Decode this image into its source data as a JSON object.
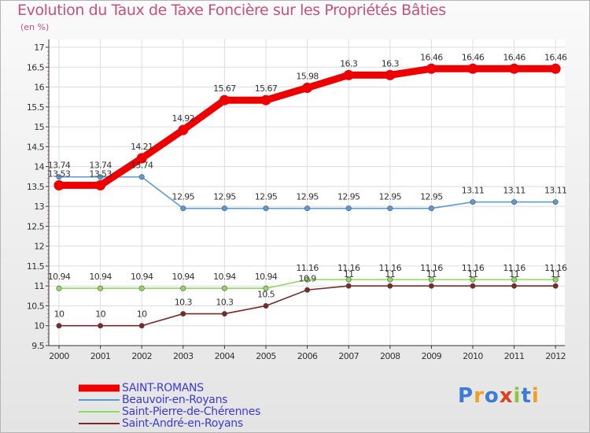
{
  "chart_data": {
    "type": "line",
    "title": "Evolution du Taux de Taxe Foncière sur les Propriétés Bâties",
    "ylabel": "(en %)",
    "x": [
      "2000",
      "2001",
      "2002",
      "2003",
      "2004",
      "2005",
      "2006",
      "2007",
      "2008",
      "2009",
      "2010",
      "2011",
      "2012"
    ],
    "ylim": [
      9.5,
      17
    ],
    "yticks": [
      "9.5",
      "10",
      "10.5",
      "11",
      "11.5",
      "12",
      "12.5",
      "13",
      "13.5",
      "14",
      "14.5",
      "15",
      "15.5",
      "16",
      "16.5",
      "17"
    ],
    "series": [
      {
        "name": "SAINT-ROMANS",
        "color": "#ee0000",
        "values": [
          13.53,
          13.53,
          14.21,
          14.92,
          15.67,
          15.67,
          15.98,
          16.3,
          16.3,
          16.46,
          16.46,
          16.46,
          16.46
        ],
        "labels": [
          "13.53",
          "13.53",
          "14.21",
          "14.92",
          "15.67",
          "15.67",
          "15.98",
          "16.3",
          "16.3",
          "16.46",
          "16.46",
          "16.46",
          "16.46"
        ]
      },
      {
        "name": "Beauvoir-en-Royans",
        "color": "#5b9bd5",
        "values": [
          13.74,
          13.74,
          13.74,
          12.95,
          12.95,
          12.95,
          12.95,
          12.95,
          12.95,
          12.95,
          13.11,
          13.11,
          13.11
        ],
        "labels": [
          "13.74",
          "13.74",
          "13.74",
          "12.95",
          "12.95",
          "12.95",
          "12.95",
          "12.95",
          "12.95",
          "12.95",
          "13.11",
          "13.11",
          "13.11"
        ]
      },
      {
        "name": "Saint-Pierre-de-Chérennes",
        "color": "#8fdc5a",
        "values": [
          10.94,
          10.94,
          10.94,
          10.94,
          10.94,
          10.94,
          11.16,
          11.16,
          11.16,
          11.16,
          11.16,
          11.16,
          11.16
        ],
        "labels": [
          "10.94",
          "10.94",
          "10.94",
          "10.94",
          "10.94",
          "10.94",
          "11.16",
          "11.16",
          "11.16",
          "11.16",
          "11.16",
          "11.16",
          "11.16"
        ]
      },
      {
        "name": "Saint-André-en-Royans",
        "color": "#7a2828",
        "values": [
          10,
          10,
          10,
          10.3,
          10.3,
          10.5,
          10.9,
          11,
          11,
          11,
          11,
          11,
          11
        ],
        "labels": [
          "10",
          "10",
          "10",
          "10.3",
          "10.3",
          "10.5",
          "10.9",
          "11",
          "11",
          "11",
          "11",
          "11",
          "11"
        ]
      }
    ]
  },
  "legend": {
    "items": [
      "SAINT-ROMANS",
      "Beauvoir-en-Royans",
      "Saint-Pierre-de-Chérennes",
      "Saint-André-en-Royans"
    ]
  },
  "logo": {
    "text": "Proxiti",
    "colors": [
      "#3b7bd6",
      "#f0a020",
      "#3b7bd6",
      "#e04020",
      "#8cc63f",
      "#3b7bd6",
      "#f0a020"
    ]
  }
}
